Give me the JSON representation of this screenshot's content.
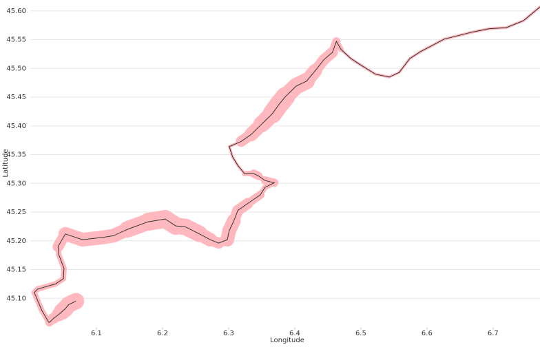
{
  "chart_data": {
    "type": "line",
    "x_label": "Longitude",
    "y_label": "Latitude",
    "xlim": [
      6.0,
      6.771
    ],
    "ylim": [
      45.05,
      45.619
    ],
    "xticks": [
      6.1,
      6.2,
      6.3,
      6.4,
      6.5,
      6.6,
      6.7
    ],
    "yticks": [
      {
        "value": 45.1,
        "label": "45.10"
      },
      {
        "value": 45.15,
        "label": "45.15"
      },
      {
        "value": 45.2,
        "label": "45.20"
      },
      {
        "value": 45.25,
        "label": "45.25"
      },
      {
        "value": 45.3,
        "label": "45.30"
      },
      {
        "value": 45.35,
        "label": "45.35"
      },
      {
        "value": 45.4,
        "label": "45.40"
      },
      {
        "value": 45.45,
        "label": "45.45"
      },
      {
        "value": 45.5,
        "label": "45.50"
      },
      {
        "value": 45.55,
        "label": "45.55"
      },
      {
        "value": 45.6,
        "label": "45.60"
      }
    ],
    "grid": true,
    "x": [
      6.069,
      6.058,
      6.053,
      6.048,
      6.043,
      6.035,
      6.029,
      6.027,
      6.017,
      6.006,
      6.011,
      6.038,
      6.05,
      6.051,
      6.043,
      6.042,
      6.053,
      6.079,
      6.11,
      6.126,
      6.147,
      6.178,
      6.204,
      6.22,
      6.235,
      6.256,
      6.272,
      6.285,
      6.298,
      6.301,
      6.308,
      6.314,
      6.329,
      6.348,
      6.355,
      6.369,
      6.355,
      6.345,
      6.338,
      6.324,
      6.314,
      6.306,
      6.301,
      6.319,
      6.334,
      6.35,
      6.366,
      6.376,
      6.386,
      6.402,
      6.418,
      6.431,
      6.444,
      6.457,
      6.463,
      6.47,
      6.485,
      6.501,
      6.522,
      6.543,
      6.558,
      6.574,
      6.59,
      6.605,
      6.626,
      6.647,
      6.668,
      6.694,
      6.72,
      6.746,
      6.771
    ],
    "series": [
      {
        "color": "#333333",
        "band_color": "#ffb8be",
        "values": [
          45.095,
          45.089,
          45.082,
          45.077,
          45.072,
          45.065,
          45.058,
          45.06,
          45.08,
          45.11,
          45.116,
          45.125,
          45.134,
          45.152,
          45.176,
          45.19,
          45.212,
          45.202,
          45.206,
          45.209,
          45.22,
          45.233,
          45.238,
          45.226,
          45.224,
          45.212,
          45.202,
          45.196,
          45.202,
          45.218,
          45.235,
          45.253,
          45.265,
          45.28,
          45.293,
          45.301,
          45.305,
          45.313,
          45.317,
          45.317,
          45.331,
          45.346,
          45.364,
          45.373,
          45.385,
          45.403,
          45.421,
          45.437,
          45.451,
          45.469,
          45.478,
          45.496,
          45.515,
          45.528,
          45.547,
          45.533,
          45.517,
          45.505,
          45.49,
          45.485,
          45.493,
          45.517,
          45.529,
          45.538,
          45.551,
          45.557,
          45.563,
          45.569,
          45.571,
          45.583,
          45.607
        ],
        "sizes": [
          12,
          12,
          12,
          10,
          8,
          6,
          4,
          4,
          4,
          4,
          4,
          4,
          4,
          4,
          4,
          8,
          10,
          10,
          10,
          10,
          12,
          13,
          13,
          12,
          12,
          10,
          8,
          7,
          10,
          10,
          8,
          8,
          6,
          4,
          4,
          6,
          4,
          6,
          4,
          2,
          2,
          2,
          2,
          8,
          10,
          12,
          14,
          14,
          12,
          12,
          10,
          8,
          8,
          6,
          4,
          2,
          2,
          2,
          2,
          2,
          2,
          2,
          2,
          2,
          2,
          2,
          2,
          2,
          2,
          2,
          2
        ]
      }
    ]
  }
}
